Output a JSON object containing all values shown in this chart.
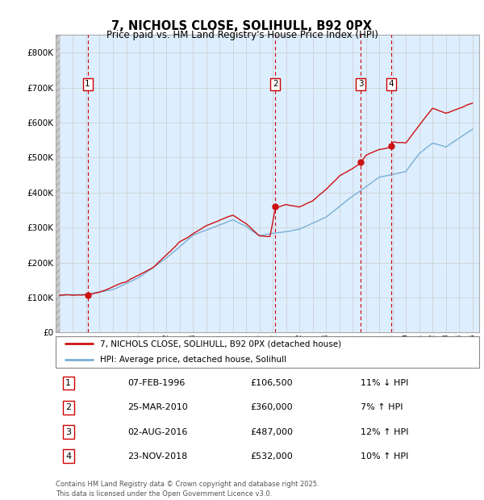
{
  "title": "7, NICHOLS CLOSE, SOLIHULL, B92 0PX",
  "subtitle": "Price paid vs. HM Land Registry's House Price Index (HPI)",
  "hpi_color": "#7aafd4",
  "price_color": "#cc1111",
  "plot_bg_color": "#ddeeff",
  "ymin": 0,
  "ymax": 850000,
  "yticks": [
    0,
    100000,
    200000,
    300000,
    400000,
    500000,
    600000,
    700000,
    800000
  ],
  "ytick_labels": [
    "£0",
    "£100K",
    "£200K",
    "£300K",
    "£400K",
    "£500K",
    "£600K",
    "£700K",
    "£800K"
  ],
  "legend_line1": "7, NICHOLS CLOSE, SOLIHULL, B92 0PX (detached house)",
  "legend_line2": "HPI: Average price, detached house, Solihull",
  "transactions": [
    {
      "num": 1,
      "date": "07-FEB-1996",
      "price": 106500,
      "year": 1996.1,
      "pct": "11%",
      "dir": "↓"
    },
    {
      "num": 2,
      "date": "25-MAR-2010",
      "price": 360000,
      "year": 2010.2,
      "pct": "7%",
      "dir": "↑"
    },
    {
      "num": 3,
      "date": "02-AUG-2016",
      "price": 487000,
      "year": 2016.6,
      "pct": "12%",
      "dir": "↑"
    },
    {
      "num": 4,
      "date": "23-NOV-2018",
      "price": 532000,
      "year": 2018.9,
      "pct": "10%",
      "dir": "↑"
    }
  ],
  "footer": "Contains HM Land Registry data © Crown copyright and database right 2025.\nThis data is licensed under the Open Government Licence v3.0.",
  "xmin": 1993.7,
  "xmax": 2025.5
}
